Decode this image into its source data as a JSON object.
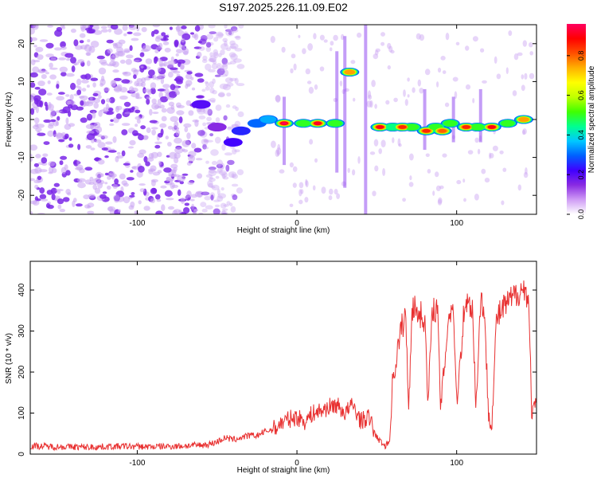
{
  "title": "S197.2025.226.11.09.E02",
  "chart_data": [
    {
      "type": "heatmap",
      "title": "S197.2025.226.11.09.E02",
      "xlabel": "Height of straight line (km)",
      "ylabel": "Frequency (Hz)",
      "xlim": [
        -167,
        150
      ],
      "ylim": [
        -25,
        25
      ],
      "xticks": [
        -100,
        0,
        100
      ],
      "yticks": [
        -20,
        -10,
        0,
        10,
        20
      ],
      "colorbar": {
        "label": "Normalized spectral amplitude",
        "range": [
          0.0,
          0.96
        ],
        "ticks": [
          "0.0",
          "0.2",
          "0.4",
          "0.6",
          "0.8"
        ],
        "tick_values": [
          0.0,
          0.2,
          0.4,
          0.6,
          0.8
        ],
        "colors": [
          "#ffffff",
          "#cf9cf5",
          "#8a2be2",
          "#4000ff",
          "#0060ff",
          "#00c8ff",
          "#00ff90",
          "#40ff00",
          "#c0ff00",
          "#ffff00",
          "#ffb000",
          "#ff5000",
          "#ff0000",
          "#ff0060"
        ]
      },
      "noise_region": {
        "x": [
          -167,
          -60
        ],
        "freq_range": [
          -25,
          25
        ],
        "amplitude": 0.1
      },
      "signal_track": [
        {
          "x": -60,
          "freq": 4,
          "amp": 0.2
        },
        {
          "x": -50,
          "freq": -2,
          "amp": 0.15
        },
        {
          "x": -40,
          "freq": -6,
          "amp": 0.22
        },
        {
          "x": -35,
          "freq": -3,
          "amp": 0.25
        },
        {
          "x": -25,
          "freq": -1,
          "amp": 0.3
        },
        {
          "x": -18,
          "freq": 0,
          "amp": 0.35
        },
        {
          "x": -8,
          "freq": -1,
          "amp": 0.95
        },
        {
          "x": 4,
          "freq": -1,
          "amp": 0.5
        },
        {
          "x": 13,
          "freq": -1,
          "amp": 0.92
        },
        {
          "x": 24,
          "freq": -1,
          "amp": 0.5
        },
        {
          "x": 33,
          "freq": 12.5,
          "amp": 0.75
        },
        {
          "x": 52,
          "freq": -2,
          "amp": 0.9
        },
        {
          "x": 60,
          "freq": -2,
          "amp": 0.45
        },
        {
          "x": 66,
          "freq": -2,
          "amp": 0.85
        },
        {
          "x": 72,
          "freq": -2,
          "amp": 0.5
        },
        {
          "x": 81,
          "freq": -3,
          "amp": 0.85
        },
        {
          "x": 87,
          "freq": -2,
          "amp": 0.5
        },
        {
          "x": 91,
          "freq": -3,
          "amp": 0.8
        },
        {
          "x": 96,
          "freq": -1,
          "amp": 0.5
        },
        {
          "x": 106,
          "freq": -2,
          "amp": 0.85
        },
        {
          "x": 113,
          "freq": -2,
          "amp": 0.5
        },
        {
          "x": 122,
          "freq": -2,
          "amp": 0.9
        },
        {
          "x": 132,
          "freq": -1,
          "amp": 0.5
        },
        {
          "x": 142,
          "freq": 0,
          "amp": 0.75
        }
      ]
    },
    {
      "type": "line",
      "xlabel": "Height of straight line (km)",
      "ylabel": "SNR (10 * v/v)",
      "xlim": [
        -167,
        150
      ],
      "ylim": [
        0,
        470
      ],
      "xticks": [
        -100,
        0,
        100
      ],
      "yticks": [
        0,
        100,
        200,
        300,
        400
      ],
      "series": [
        {
          "name": "SNR",
          "color": "#e83030",
          "x": [
            -167,
            -150,
            -130,
            -110,
            -90,
            -70,
            -60,
            -55,
            -50,
            -45,
            -40,
            -35,
            -30,
            -25,
            -20,
            -15,
            -10,
            -5,
            0,
            5,
            10,
            15,
            20,
            25,
            30,
            35,
            40,
            45,
            50,
            55,
            58,
            60,
            65,
            68,
            70,
            72,
            75,
            80,
            82,
            85,
            88,
            90,
            95,
            98,
            100,
            105,
            110,
            112,
            115,
            117,
            120,
            122,
            125,
            130,
            135,
            140,
            143,
            145,
            147,
            150
          ],
          "y": [
            20,
            18,
            17,
            19,
            18,
            20,
            22,
            24,
            30,
            40,
            35,
            40,
            45,
            45,
            55,
            60,
            75,
            85,
            90,
            80,
            100,
            105,
            115,
            120,
            100,
            120,
            80,
            90,
            40,
            20,
            30,
            180,
            300,
            340,
            110,
            360,
            350,
            330,
            120,
            360,
            350,
            110,
            340,
            360,
            120,
            370,
            360,
            110,
            380,
            360,
            100,
            70,
            330,
            360,
            380,
            400,
            400,
            380,
            100,
            120
          ]
        }
      ]
    }
  ]
}
